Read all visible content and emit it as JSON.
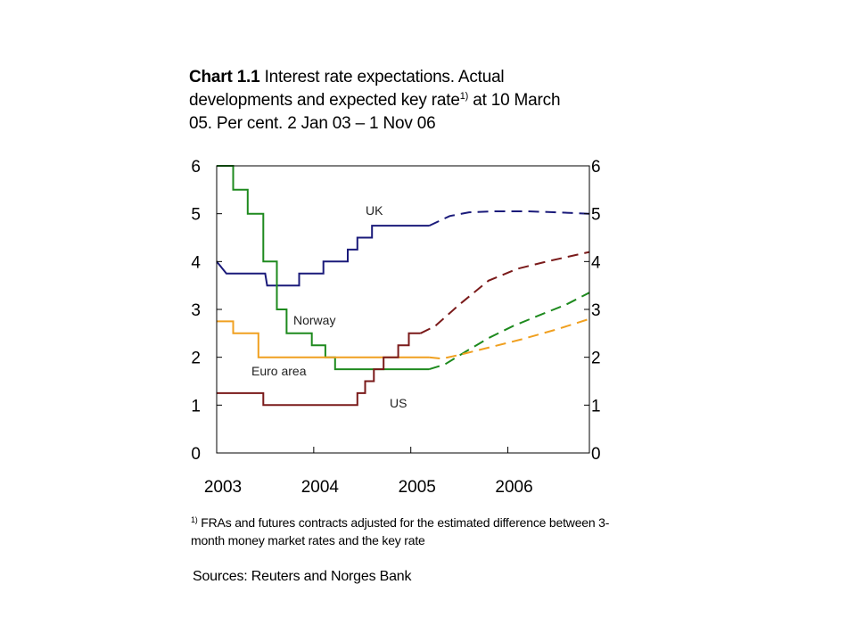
{
  "title": {
    "bold": "Chart 1.1",
    "text_before_sup": " Interest rate expectations. Actual developments and expected key rate",
    "sup": "1)",
    "text_after_sup": " at 10 March 05. Per cent. 2 Jan 03 – 1 Nov 06"
  },
  "footnote": {
    "marker": "1)",
    "text": " FRAs and futures contracts adjusted for the estimated difference between 3-month money market rates and the key rate"
  },
  "sources": "Sources: Reuters and Norges Bank",
  "chart_data": {
    "type": "line",
    "xlim": [
      2003.0,
      2006.84
    ],
    "ylim": [
      0,
      6
    ],
    "x_ticks": [
      2003,
      2004,
      2005,
      2006
    ],
    "y_ticks": [
      0,
      1,
      2,
      3,
      4,
      5,
      6
    ],
    "y_ticks_right": [
      0,
      1,
      2,
      3,
      4,
      5,
      6
    ],
    "grid": false,
    "legend": "inline labels",
    "series": [
      {
        "name": "UK",
        "color": "#1a1a7a",
        "actual": [
          [
            2003.0,
            4.0
          ],
          [
            2003.1,
            3.75
          ],
          [
            2003.5,
            3.75
          ],
          [
            2003.52,
            3.5
          ],
          [
            2003.85,
            3.5
          ],
          [
            2003.85,
            3.75
          ],
          [
            2004.1,
            3.75
          ],
          [
            2004.1,
            4.0
          ],
          [
            2004.35,
            4.0
          ],
          [
            2004.35,
            4.25
          ],
          [
            2004.45,
            4.25
          ],
          [
            2004.45,
            4.5
          ],
          [
            2004.6,
            4.5
          ],
          [
            2004.6,
            4.75
          ],
          [
            2005.19,
            4.75
          ]
        ],
        "expected": [
          [
            2005.19,
            4.75
          ],
          [
            2005.4,
            4.95
          ],
          [
            2005.6,
            5.03
          ],
          [
            2005.85,
            5.05
          ],
          [
            2006.2,
            5.05
          ],
          [
            2006.5,
            5.03
          ],
          [
            2006.84,
            5.0
          ]
        ]
      },
      {
        "name": "Norway",
        "color": "#1e8a1e",
        "actual": [
          [
            2003.0,
            6.0
          ],
          [
            2003.17,
            6.0
          ],
          [
            2003.17,
            5.5
          ],
          [
            2003.32,
            5.5
          ],
          [
            2003.32,
            5.0
          ],
          [
            2003.48,
            5.0
          ],
          [
            2003.48,
            4.0
          ],
          [
            2003.62,
            4.0
          ],
          [
            2003.62,
            3.0
          ],
          [
            2003.72,
            3.0
          ],
          [
            2003.72,
            2.5
          ],
          [
            2003.98,
            2.5
          ],
          [
            2003.98,
            2.25
          ],
          [
            2004.12,
            2.25
          ],
          [
            2004.12,
            2.0
          ],
          [
            2004.22,
            2.0
          ],
          [
            2004.22,
            1.75
          ],
          [
            2005.19,
            1.75
          ]
        ],
        "expected": [
          [
            2005.19,
            1.75
          ],
          [
            2005.35,
            1.85
          ],
          [
            2005.55,
            2.1
          ],
          [
            2005.8,
            2.4
          ],
          [
            2006.05,
            2.65
          ],
          [
            2006.35,
            2.9
          ],
          [
            2006.6,
            3.1
          ],
          [
            2006.84,
            3.35
          ]
        ]
      },
      {
        "name": "Euro area",
        "color": "#f0a020",
        "actual": [
          [
            2003.0,
            2.75
          ],
          [
            2003.17,
            2.75
          ],
          [
            2003.17,
            2.5
          ],
          [
            2003.43,
            2.5
          ],
          [
            2003.43,
            2.0
          ],
          [
            2005.19,
            2.0
          ]
        ],
        "expected": [
          [
            2005.19,
            2.0
          ],
          [
            2005.32,
            1.97
          ],
          [
            2005.5,
            2.05
          ],
          [
            2005.8,
            2.2
          ],
          [
            2006.15,
            2.38
          ],
          [
            2006.5,
            2.58
          ],
          [
            2006.84,
            2.8
          ]
        ]
      },
      {
        "name": "US",
        "color": "#7a1a1a",
        "actual": [
          [
            2003.0,
            1.25
          ],
          [
            2003.48,
            1.25
          ],
          [
            2003.48,
            1.0
          ],
          [
            2004.45,
            1.0
          ],
          [
            2004.45,
            1.25
          ],
          [
            2004.53,
            1.25
          ],
          [
            2004.53,
            1.5
          ],
          [
            2004.62,
            1.5
          ],
          [
            2004.62,
            1.75
          ],
          [
            2004.72,
            1.75
          ],
          [
            2004.72,
            2.0
          ],
          [
            2004.87,
            2.0
          ],
          [
            2004.87,
            2.25
          ],
          [
            2004.98,
            2.25
          ],
          [
            2004.98,
            2.5
          ],
          [
            2005.1,
            2.5
          ]
        ],
        "expected": [
          [
            2005.1,
            2.5
          ],
          [
            2005.25,
            2.65
          ],
          [
            2005.5,
            3.1
          ],
          [
            2005.8,
            3.6
          ],
          [
            2006.1,
            3.85
          ],
          [
            2006.4,
            4.0
          ],
          [
            2006.84,
            4.2
          ]
        ]
      }
    ]
  }
}
